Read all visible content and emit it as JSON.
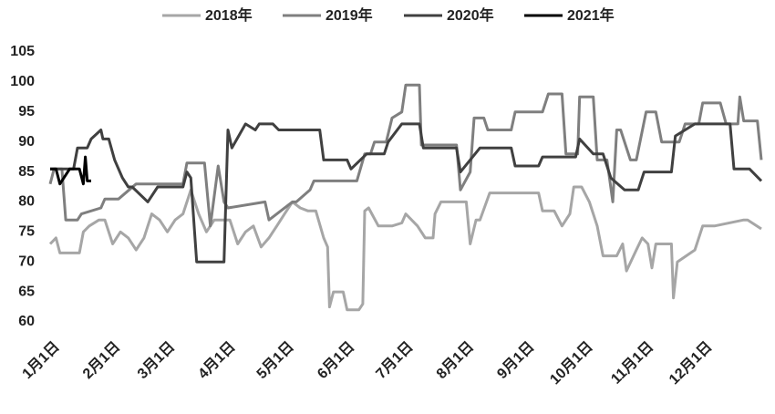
{
  "chart_data": {
    "type": "line",
    "series": [
      {
        "name": "2018年",
        "color": "#a6a6a6",
        "x": [
          0,
          3,
          5,
          15,
          17,
          20,
          25,
          28,
          32,
          36,
          40,
          44,
          48,
          52,
          56,
          60,
          64,
          68,
          72,
          76,
          80,
          84,
          88,
          92,
          96,
          100,
          104,
          108,
          112,
          116,
          120,
          124,
          128,
          132,
          136,
          140,
          142,
          143,
          145,
          150,
          152,
          158,
          160,
          161,
          163,
          168,
          175,
          180,
          182,
          188,
          192,
          196,
          197,
          200,
          213,
          215,
          218,
          220,
          225,
          250,
          252,
          258,
          262,
          266,
          268,
          272,
          276,
          280,
          283,
          290,
          293,
          295,
          300,
          303,
          306,
          308,
          310,
          318,
          319,
          321,
          330,
          334,
          340,
          355,
          357,
          364
        ],
        "values": [
          73,
          74,
          71.5,
          71.5,
          75,
          76,
          77,
          77,
          73,
          75,
          74,
          72,
          74,
          78,
          77,
          75,
          77,
          78,
          82,
          78,
          75,
          77,
          77,
          77,
          73,
          75,
          76,
          72.5,
          74,
          76,
          78,
          80,
          79,
          78.5,
          78.5,
          74,
          72.5,
          62.5,
          65,
          65,
          62,
          62,
          63,
          78.5,
          79,
          76,
          76,
          76.5,
          78,
          76,
          74,
          74,
          78,
          80,
          80,
          73,
          77,
          77,
          81.5,
          81.5,
          78.5,
          78.5,
          76,
          78,
          82.5,
          82.5,
          80,
          76,
          71,
          71,
          73,
          68.5,
          72,
          74,
          73,
          69,
          73,
          73,
          64,
          70,
          72,
          76,
          76,
          77,
          77,
          75.5
        ]
      },
      {
        "name": "2019年",
        "color": "#7f7f7f",
        "x": [
          0,
          2,
          6,
          8,
          14,
          16,
          26,
          28,
          33,
          35,
          44,
          68,
          70,
          79,
          82,
          86,
          89,
          91,
          110,
          112,
          124,
          126,
          133,
          135,
          157,
          161,
          164,
          166,
          172,
          175,
          180,
          182,
          189,
          190,
          208,
          210,
          215,
          217,
          222,
          224,
          236,
          238,
          252,
          255,
          262,
          264,
          270,
          271,
          278,
          280,
          285,
          288,
          290,
          292,
          297,
          300,
          305,
          310,
          313,
          322,
          325,
          332,
          334,
          343,
          346,
          352,
          353,
          355,
          362,
          364
        ],
        "values": [
          83,
          85.5,
          85.5,
          77,
          77,
          78,
          79,
          80.5,
          80.5,
          80.5,
          83,
          83,
          86.5,
          86.5,
          76,
          86,
          80,
          79,
          80,
          77,
          80,
          80,
          82,
          83.5,
          83.5,
          88,
          88,
          90,
          90,
          94,
          95,
          99.5,
          99.5,
          89.5,
          89.5,
          82,
          85,
          94,
          94,
          92,
          92,
          95,
          95,
          98,
          98,
          88,
          88,
          97.5,
          97.5,
          87,
          87,
          80,
          92,
          92,
          87,
          87,
          95,
          95,
          90,
          90,
          93,
          93,
          96.5,
          96.5,
          93,
          93,
          97.5,
          93.5,
          93.5,
          87
        ]
      },
      {
        "name": "2020年",
        "color": "#404040",
        "x": [
          0,
          12,
          14,
          19,
          21,
          26,
          27,
          30,
          33,
          37,
          40,
          42,
          50,
          55,
          60,
          68,
          70,
          72,
          75,
          89,
          91,
          93,
          100,
          105,
          107,
          114,
          117,
          138,
          140,
          152,
          154,
          162,
          171,
          173,
          180,
          189,
          191,
          208,
          210,
          220,
          236,
          238,
          250,
          252,
          269,
          271,
          278,
          283,
          287,
          294,
          301,
          304,
          318,
          320,
          330,
          348,
          350,
          358,
          364
        ],
        "values": [
          85.5,
          85.5,
          89,
          89,
          90.5,
          92,
          90.5,
          90.5,
          87,
          84,
          82.5,
          82.5,
          80,
          82.5,
          82.5,
          82.5,
          85,
          84,
          70,
          70,
          92,
          89,
          93,
          92,
          93,
          93,
          92,
          92,
          87,
          87,
          85.5,
          88,
          88,
          90,
          93,
          93,
          89,
          89,
          85,
          89,
          89,
          86,
          86,
          87.5,
          87.5,
          90.5,
          88,
          88,
          84,
          82,
          82,
          85,
          85,
          91,
          93,
          93,
          85.5,
          85.5,
          83.5
        ]
      },
      {
        "name": "2021年",
        "color": "#000000",
        "x": [
          0,
          3,
          5,
          10,
          15,
          17,
          18,
          19,
          21
        ],
        "values": [
          85.5,
          85.5,
          83,
          85.5,
          85.5,
          83,
          87.5,
          83.5,
          83.5
        ]
      }
    ],
    "xlim": [
      0,
      364
    ],
    "xticks": [
      {
        "value": 0,
        "label": "1月1日"
      },
      {
        "value": 31,
        "label": "2月1日"
      },
      {
        "value": 59,
        "label": "3月1日"
      },
      {
        "value": 90,
        "label": "4月1日"
      },
      {
        "value": 120,
        "label": "5月1日"
      },
      {
        "value": 151,
        "label": "6月1日"
      },
      {
        "value": 181,
        "label": "7月1日"
      },
      {
        "value": 212,
        "label": "8月1日"
      },
      {
        "value": 243,
        "label": "9月1日"
      },
      {
        "value": 273,
        "label": "10月1日"
      },
      {
        "value": 304,
        "label": "11月1日"
      },
      {
        "value": 334,
        "label": "12月1日"
      }
    ],
    "ylim": [
      60,
      105
    ],
    "yticks": [
      60,
      65,
      70,
      75,
      80,
      85,
      90,
      95,
      100,
      105
    ],
    "grid": false,
    "legend": "top"
  }
}
